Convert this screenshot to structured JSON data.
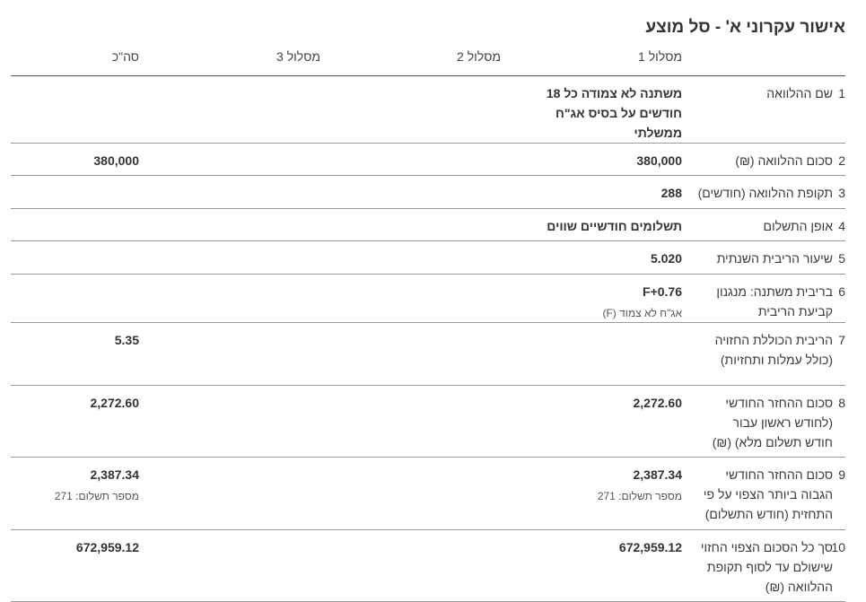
{
  "title": "אישור עקרוני א' - סל מוצע",
  "header": {
    "columns": [
      "מסלול 1",
      "מסלול 2",
      "מסלול 3",
      "סה\"כ"
    ]
  },
  "rows": [
    {
      "number": "1",
      "label": [
        "שם ההלוואה"
      ],
      "track1": {
        "value": [
          "משתנה לא צמודה כל 18",
          "חודשים על בסיס אג\"ח",
          "ממשלתי"
        ]
      }
    },
    {
      "number": "2",
      "label": [
        "סכום ההלוואה (₪)"
      ],
      "track1": {
        "value": "380,000"
      },
      "total": {
        "value": "380,000"
      }
    },
    {
      "number": "3",
      "label": [
        "תקופת ההלוואה (חודשים)"
      ],
      "track1": {
        "value": "288"
      }
    },
    {
      "number": "4",
      "label": [
        "אופן התשלום"
      ],
      "track1": {
        "value": "תשלומים חודשיים שווים"
      }
    },
    {
      "number": "5",
      "label": [
        "שיעור הריבית השנתית"
      ],
      "track1": {
        "value": "5.020"
      }
    },
    {
      "number": "6",
      "label": [
        "בריבית משתנה: מנגנון",
        "קביעת הריבית"
      ],
      "track1": {
        "value": "F+0.76",
        "note": "אג\"ח לא צמוד (F)"
      }
    },
    {
      "number": "7",
      "label": [
        "הריבית הכוללת החזויה",
        "(כולל עמלות ותחזיות)"
      ],
      "total": {
        "value": "5.35"
      }
    },
    {
      "number": "8",
      "label": [
        "סכום ההחזר החודשי",
        "(לחודש ראשון עבור",
        "חודש תשלום מלא) (₪)"
      ],
      "track1": {
        "value": "2,272.60"
      },
      "total": {
        "value": "2,272.60"
      }
    },
    {
      "number": "9",
      "label": [
        "סכום ההחזר החודשי",
        "הגבוה ביותר הצפוי על פי",
        "התחזית (חודש התשלום)"
      ],
      "track1": {
        "value": "2,387.34",
        "note": "מספר תשלום: 271"
      },
      "total": {
        "value": "2,387.34",
        "note": "מספר תשלום: 271"
      }
    },
    {
      "number": "10",
      "label": [
        "סך כל הסכום הצפוי החזוי",
        "שישולם עד לסוף תקופת",
        "ההלוואה (₪)"
      ],
      "track1": {
        "value": "672,959.12"
      },
      "total": {
        "value": "672,959.12"
      }
    }
  ]
}
